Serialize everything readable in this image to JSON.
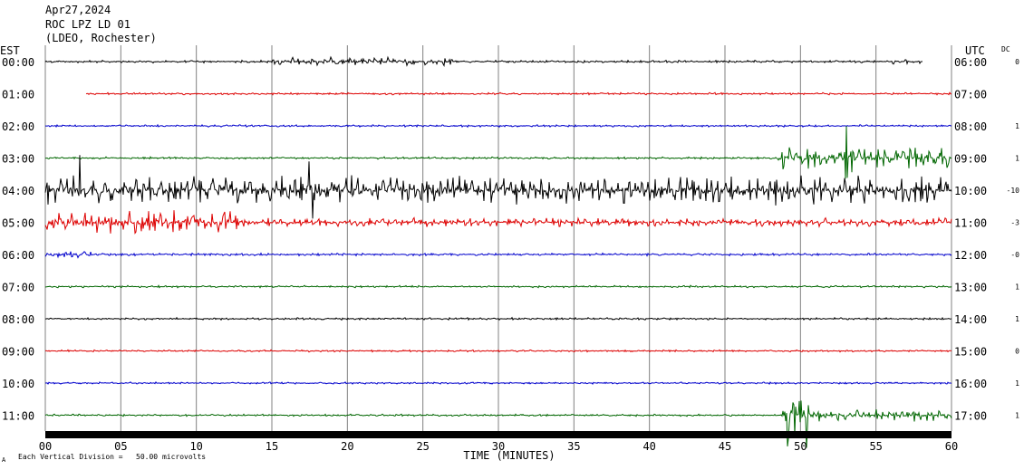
{
  "header": {
    "date": "Apr27,2024",
    "station": "ROC LPZ LD 01",
    "network": "(LDEO, Rochester)"
  },
  "left_axis_label": "EST",
  "right_axis_label": "UTC",
  "dc_label": "DC",
  "footer": {
    "scale_note": "Each Vertical Division =   50.00 microvolts",
    "corner_mark": "A"
  },
  "colors": {
    "black": "#000000",
    "red": "#dd0000",
    "blue": "#0000cc",
    "green": "#006600",
    "grid": "#808080"
  },
  "chart_data": {
    "type": "line",
    "title": "Apr27,2024 ROC LPZ LD 01 (LDEO, Rochester)",
    "xlabel": "TIME (MINUTES)",
    "xlim": [
      0,
      60
    ],
    "x_ticks": [
      "00",
      "05",
      "10",
      "15",
      "20",
      "25",
      "30",
      "35",
      "40",
      "45",
      "50",
      "55",
      "60"
    ],
    "grid": true,
    "series": [
      {
        "est": "00:00",
        "utc": "06:00",
        "dc": "0",
        "color": "black",
        "start_min": 0,
        "end_min": 58.1,
        "amp": 1.5,
        "events": [
          {
            "t0": 15,
            "t1": 27,
            "amp": 5
          },
          {
            "t0": 56,
            "t1": 58,
            "amp": 3
          }
        ]
      },
      {
        "est": "01:00",
        "utc": "07:00",
        "dc": "",
        "color": "red",
        "start_min": 2.7,
        "end_min": 60,
        "amp": 1.3,
        "events": []
      },
      {
        "est": "02:00",
        "utc": "08:00",
        "dc": "1",
        "color": "blue",
        "start_min": 0,
        "end_min": 60,
        "amp": 1.3,
        "events": []
      },
      {
        "est": "03:00",
        "utc": "09:00",
        "dc": "1",
        "color": "green",
        "start_min": 0,
        "end_min": 60,
        "amp": 1.3,
        "events": [
          {
            "t0": 48.5,
            "t1": 60,
            "amp": 13
          },
          {
            "t0": 52.9,
            "t1": 53.4,
            "amp": 40
          }
        ]
      },
      {
        "est": "04:00",
        "utc": "10:00",
        "dc": "-10",
        "color": "black",
        "start_min": 0,
        "end_min": 60,
        "amp": 17,
        "events": [
          {
            "t0": 17.4,
            "t1": 17.7,
            "amp": 70
          },
          {
            "t0": 2.1,
            "t1": 2.3,
            "amp": 45
          }
        ]
      },
      {
        "est": "05:00",
        "utc": "11:00",
        "dc": "-3",
        "color": "red",
        "start_min": 0,
        "end_min": 60,
        "amp": 5,
        "events": [
          {
            "t0": 0,
            "t1": 13,
            "amp": 14
          }
        ]
      },
      {
        "est": "06:00",
        "utc": "12:00",
        "dc": "-0",
        "color": "blue",
        "start_min": 0,
        "end_min": 60,
        "amp": 1.5,
        "events": [
          {
            "t0": 0,
            "t1": 3,
            "amp": 4
          }
        ]
      },
      {
        "est": "07:00",
        "utc": "13:00",
        "dc": "1",
        "color": "green",
        "start_min": 0,
        "end_min": 60,
        "amp": 1.3,
        "events": []
      },
      {
        "est": "08:00",
        "utc": "14:00",
        "dc": "1",
        "color": "black",
        "start_min": 0,
        "end_min": 60,
        "amp": 1.3,
        "events": []
      },
      {
        "est": "09:00",
        "utc": "15:00",
        "dc": "0",
        "color": "red",
        "start_min": 0,
        "end_min": 60,
        "amp": 1.2,
        "events": []
      },
      {
        "est": "10:00",
        "utc": "16:00",
        "dc": "1",
        "color": "blue",
        "start_min": 0,
        "end_min": 60,
        "amp": 1.2,
        "events": []
      },
      {
        "est": "11:00",
        "utc": "17:00",
        "dc": "1",
        "color": "green",
        "start_min": 0,
        "end_min": 60,
        "amp": 1.3,
        "events": [
          {
            "t0": 48.8,
            "t1": 50.6,
            "amp": 38
          },
          {
            "t0": 50.6,
            "t1": 60,
            "amp": 7
          }
        ]
      }
    ]
  }
}
